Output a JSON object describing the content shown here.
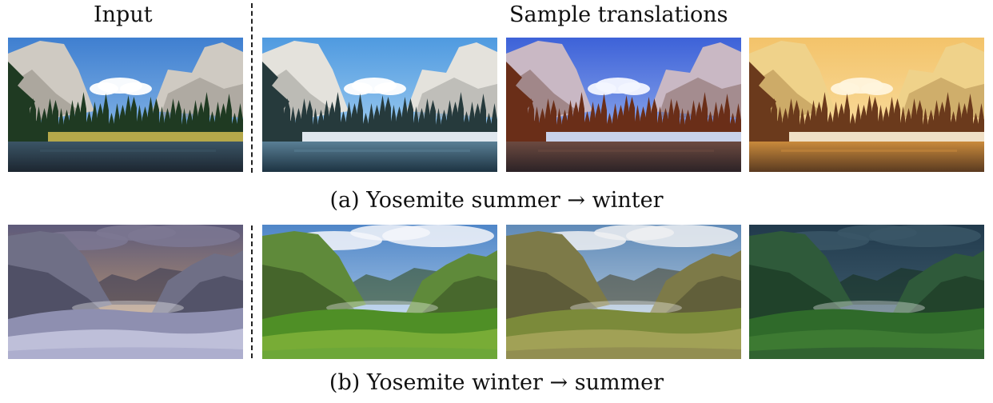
{
  "headers": {
    "input": "Input",
    "samples": "Sample translations"
  },
  "rows": [
    {
      "caption": "(a) Yosemite summer → winter",
      "panels": [
        {
          "name": "input-summer-valley",
          "sky": [
            "#3f7fd0",
            "#9cc7ee"
          ],
          "cloud": "#ffffff",
          "rock": "#cfcac2",
          "rockShade": "#8f8a82",
          "trees": "#1f3a22",
          "meadow": "#b5a84a",
          "water": "#1c2630",
          "waterHi": "#3b5566"
        },
        {
          "name": "output-winter-1",
          "sky": [
            "#4f9ae0",
            "#b8dcf5"
          ],
          "cloud": "#ffffff",
          "rock": "#e4e2dc",
          "rockShade": "#9a9a96",
          "trees": "#263a3c",
          "meadow": "#dfe7ee",
          "water": "#1d3342",
          "waterHi": "#5a7f95"
        },
        {
          "name": "output-winter-2",
          "sky": [
            "#3d62d8",
            "#a8c0f2"
          ],
          "cloud": "#f3f5ff",
          "rock": "#c9b8c4",
          "rockShade": "#7f5f5a",
          "trees": "#6a2e18",
          "meadow": "#c9d2ea",
          "water": "#2c2226",
          "waterHi": "#6c4a40"
        },
        {
          "name": "output-winter-3",
          "sky": [
            "#f3c36a",
            "#fbe5b0"
          ],
          "cloud": "#fff4dc",
          "rock": "#efd28a",
          "rockShade": "#b08a4c",
          "trees": "#6b3a1c",
          "meadow": "#f0e0c6",
          "water": "#5a3a20",
          "waterHi": "#c98a3c"
        }
      ]
    },
    {
      "caption": "(b) Yosemite winter → summer",
      "panels": [
        {
          "name": "input-winter-valley",
          "sky": [
            "#5d5a7a",
            "#d7a86f"
          ],
          "cloud": "#7d7893",
          "rock": "#6f6f86",
          "rockShade": "#3c3c52",
          "trees": "#8e8fb0",
          "meadow": "#c7c8e0",
          "water": "#a9aacb",
          "waterHi": "#e4e4f2"
        },
        {
          "name": "output-summer-1",
          "sky": [
            "#4f86c8",
            "#c6dcf0"
          ],
          "cloud": "#f4f6fa",
          "rock": "#5f8a3a",
          "rockShade": "#344d22",
          "trees": "#4f8f26",
          "meadow": "#7fb23a",
          "water": "#6aa63a",
          "waterHi": "#a8d070"
        },
        {
          "name": "output-summer-2",
          "sky": [
            "#5f8ab8",
            "#cddbe8"
          ],
          "cloud": "#eef0f2",
          "rock": "#7d7a48",
          "rockShade": "#4a4830",
          "trees": "#7b8a3a",
          "meadow": "#a8a45c",
          "water": "#8e8a50",
          "waterHi": "#c2bd84"
        },
        {
          "name": "output-summer-3",
          "sky": [
            "#213a4c",
            "#4b6a7c"
          ],
          "cloud": "#3a5666",
          "rock": "#2f5a3a",
          "rockShade": "#18321f",
          "trees": "#2f6a2a",
          "meadow": "#3f7d34",
          "water": "#2e5e30",
          "waterHi": "#5a8a50"
        }
      ]
    }
  ]
}
